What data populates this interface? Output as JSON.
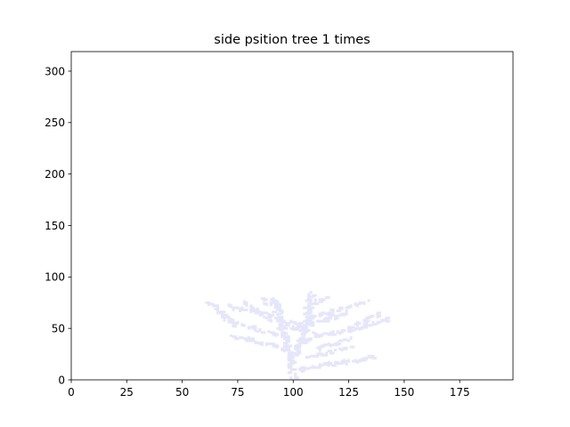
{
  "chart_data": {
    "type": "scatter",
    "title": "side psition tree 1 times",
    "xlabel": "",
    "ylabel": "",
    "xlim": [
      0,
      199
    ],
    "ylim": [
      0,
      319
    ],
    "x_ticks": [
      0,
      25,
      50,
      75,
      100,
      125,
      150,
      175
    ],
    "y_ticks": [
      0,
      50,
      100,
      150,
      200,
      250,
      300
    ],
    "grid": false,
    "legend": "none",
    "marker": "s",
    "point_color": "#e6e6fa",
    "branches": [
      {
        "from": [
          100,
          0
        ],
        "to": [
          99,
          20
        ]
      },
      {
        "from": [
          99,
          20
        ],
        "to": [
          97,
          40
        ]
      },
      {
        "from": [
          97,
          40
        ],
        "to": [
          94,
          60
        ]
      },
      {
        "from": [
          94,
          60
        ],
        "to": [
          92,
          78
        ]
      },
      {
        "from": [
          99,
          20
        ],
        "to": [
          104,
          38
        ]
      },
      {
        "from": [
          104,
          38
        ],
        "to": [
          107,
          60
        ]
      },
      {
        "from": [
          107,
          60
        ],
        "to": [
          108,
          84
        ]
      },
      {
        "from": [
          102,
          10
        ],
        "to": [
          120,
          16
        ]
      },
      {
        "from": [
          120,
          16
        ],
        "to": [
          137,
          22
        ]
      },
      {
        "from": [
          108,
          22
        ],
        "to": [
          125,
          32
        ]
      },
      {
        "from": [
          97,
          40
        ],
        "to": [
          85,
          48
        ]
      },
      {
        "from": [
          85,
          48
        ],
        "to": [
          72,
          57
        ]
      },
      {
        "from": [
          72,
          57
        ],
        "to": [
          62,
          76
        ]
      },
      {
        "from": [
          94,
          60
        ],
        "to": [
          82,
          67
        ]
      },
      {
        "from": [
          82,
          67
        ],
        "to": [
          70,
          72
        ]
      },
      {
        "from": [
          104,
          38
        ],
        "to": [
          118,
          45
        ]
      },
      {
        "from": [
          118,
          45
        ],
        "to": [
          132,
          52
        ]
      },
      {
        "from": [
          132,
          52
        ],
        "to": [
          144,
          60
        ]
      },
      {
        "from": [
          107,
          60
        ],
        "to": [
          120,
          68
        ]
      },
      {
        "from": [
          120,
          68
        ],
        "to": [
          133,
          76
        ]
      },
      {
        "from": [
          112,
          30
        ],
        "to": [
          126,
          40
        ]
      },
      {
        "from": [
          96,
          30
        ],
        "to": [
          82,
          38
        ]
      },
      {
        "from": [
          82,
          38
        ],
        "to": [
          72,
          43
        ]
      },
      {
        "from": [
          100,
          50
        ],
        "to": [
          88,
          62
        ]
      },
      {
        "from": [
          100,
          50
        ],
        "to": [
          114,
          58
        ]
      },
      {
        "from": [
          114,
          58
        ],
        "to": [
          124,
          66
        ]
      },
      {
        "from": [
          88,
          62
        ],
        "to": [
          78,
          74
        ]
      },
      {
        "from": [
          105,
          70
        ],
        "to": [
          116,
          80
        ]
      },
      {
        "from": [
          95,
          70
        ],
        "to": [
          86,
          78
        ]
      },
      {
        "from": [
          125,
          50
        ],
        "to": [
          138,
          64
        ]
      },
      {
        "from": [
          75,
          52
        ],
        "to": [
          66,
          66
        ]
      },
      {
        "from": [
          110,
          45
        ],
        "to": [
          100,
          56
        ]
      }
    ]
  }
}
